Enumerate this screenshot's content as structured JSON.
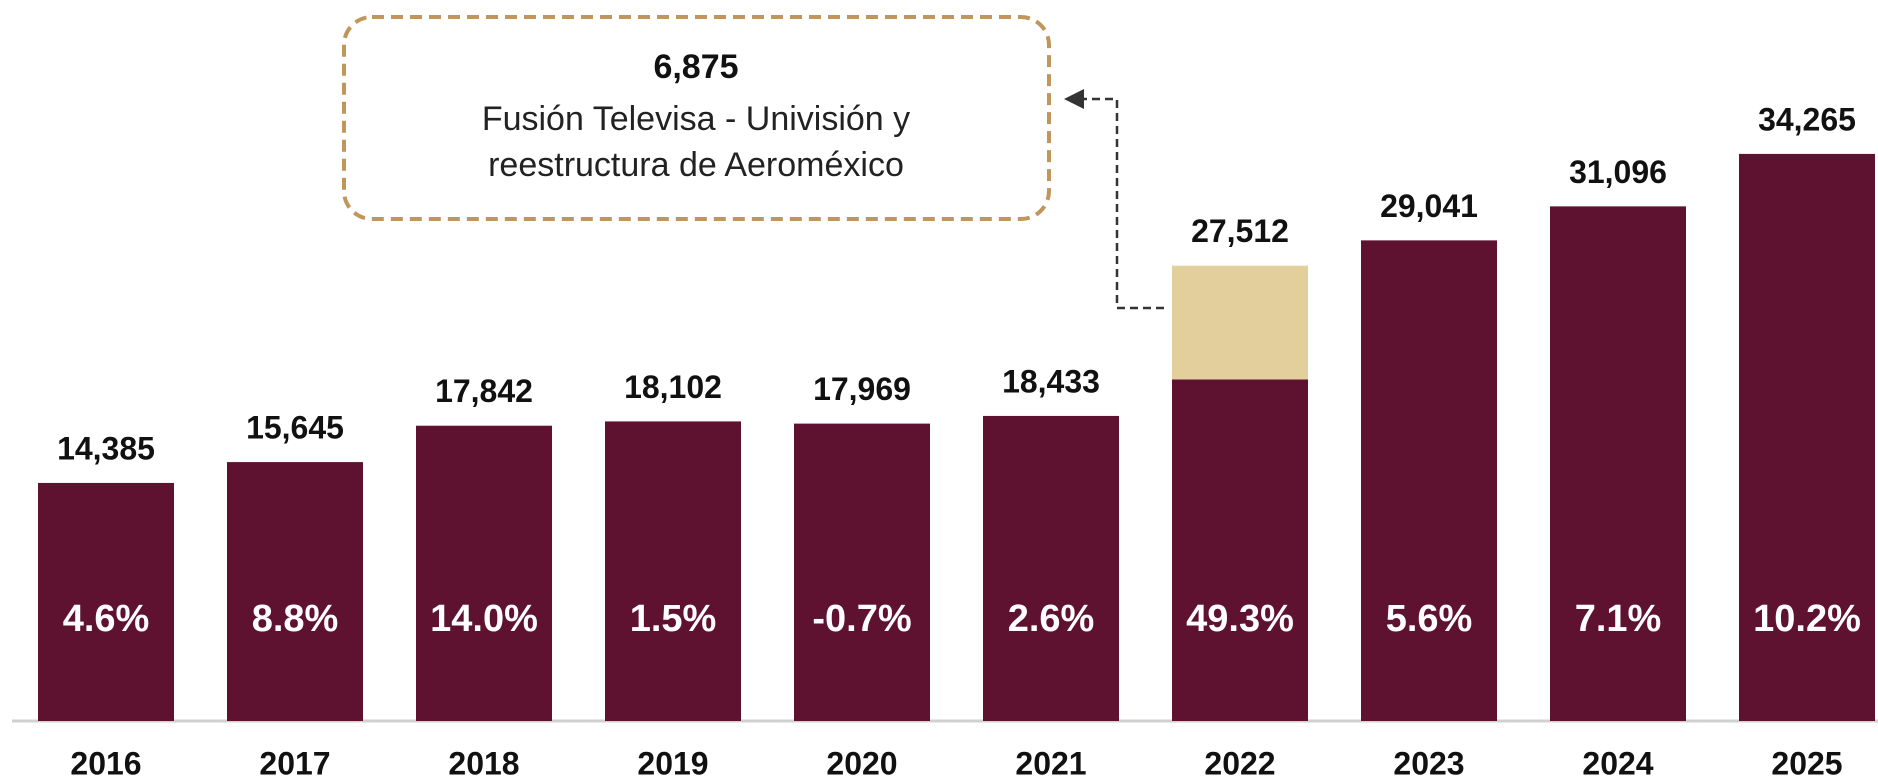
{
  "chart_data": {
    "type": "bar",
    "categories": [
      "2016",
      "2017",
      "2018",
      "2019",
      "2020",
      "2021",
      "2022",
      "2023",
      "2024",
      "2025"
    ],
    "series": [
      {
        "color": "#5f1230",
        "values": [
          14385,
          15645,
          17842,
          18102,
          17969,
          18433,
          20637,
          29041,
          31096,
          34265
        ]
      },
      {
        "color": "#e3cf9b",
        "values": [
          null,
          null,
          null,
          null,
          null,
          null,
          6875,
          null,
          null,
          null
        ],
        "value_labels": [
          null,
          null,
          null,
          null,
          null,
          null,
          "6,875",
          null,
          null,
          null
        ]
      }
    ],
    "totals": [
      14385,
      15645,
      17842,
      18102,
      17969,
      18433,
      27512,
      29041,
      31096,
      34265
    ],
    "total_labels": [
      "14,385",
      "15,645",
      "17,842",
      "18,102",
      "17,969",
      "18,433",
      "27,512",
      "29,041",
      "31,096",
      "34,265"
    ],
    "growth": [
      4.6,
      8.8,
      14.0,
      1.5,
      -0.7,
      2.6,
      49.3,
      5.6,
      7.1,
      10.2
    ],
    "growth_labels": [
      "4.6%",
      "8.8%",
      "14.0%",
      "1.5%",
      "-0.7%",
      "2.6%",
      "49.3%",
      "5.6%",
      "7.1%",
      "10.2%"
    ],
    "annotation": [
      "Fusión Televisa - Univisión y",
      "reestructura de Aeroméxico"
    ],
    "ylim": [
      0,
      40000
    ]
  }
}
